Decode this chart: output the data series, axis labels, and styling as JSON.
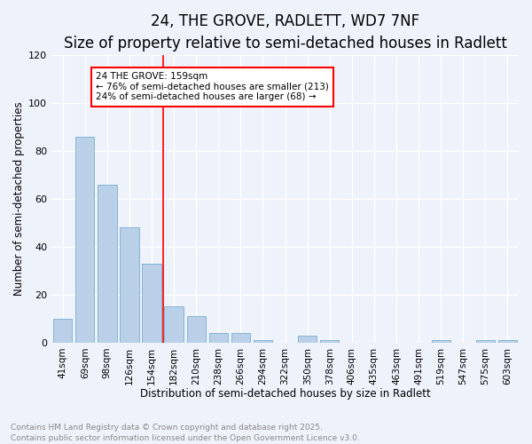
{
  "title": "24, THE GROVE, RADLETT, WD7 7NF",
  "subtitle": "Size of property relative to semi-detached houses in Radlett",
  "xlabel": "Distribution of semi-detached houses by size in Radlett",
  "ylabel": "Number of semi-detached properties",
  "categories": [
    "41sqm",
    "69sqm",
    "98sqm",
    "126sqm",
    "154sqm",
    "182sqm",
    "210sqm",
    "238sqm",
    "266sqm",
    "294sqm",
    "322sqm",
    "350sqm",
    "378sqm",
    "406sqm",
    "435sqm",
    "463sqm",
    "491sqm",
    "519sqm",
    "547sqm",
    "575sqm",
    "603sqm"
  ],
  "values": [
    10,
    86,
    66,
    48,
    33,
    15,
    11,
    4,
    4,
    1,
    0,
    3,
    1,
    0,
    0,
    0,
    0,
    1,
    0,
    1,
    1
  ],
  "bar_color": "#bad0e8",
  "bar_edge_color": "#7aadd4",
  "vline_x_index": 4,
  "vline_color": "red",
  "annotation_text": "24 THE GROVE: 159sqm\n← 76% of semi-detached houses are smaller (213)\n24% of semi-detached houses are larger (68) →",
  "annotation_box_color": "white",
  "annotation_box_edge_color": "red",
  "ylim": [
    0,
    120
  ],
  "yticks": [
    0,
    20,
    40,
    60,
    80,
    100,
    120
  ],
  "footer": "Contains HM Land Registry data © Crown copyright and database right 2025.\nContains public sector information licensed under the Open Government Licence v3.0.",
  "bg_color": "#eef2fa",
  "grid_color": "white",
  "title_fontsize": 12,
  "subtitle_fontsize": 10,
  "tick_fontsize": 7.5,
  "label_fontsize": 8.5,
  "footer_fontsize": 6.5,
  "annotation_fontsize": 7.5
}
